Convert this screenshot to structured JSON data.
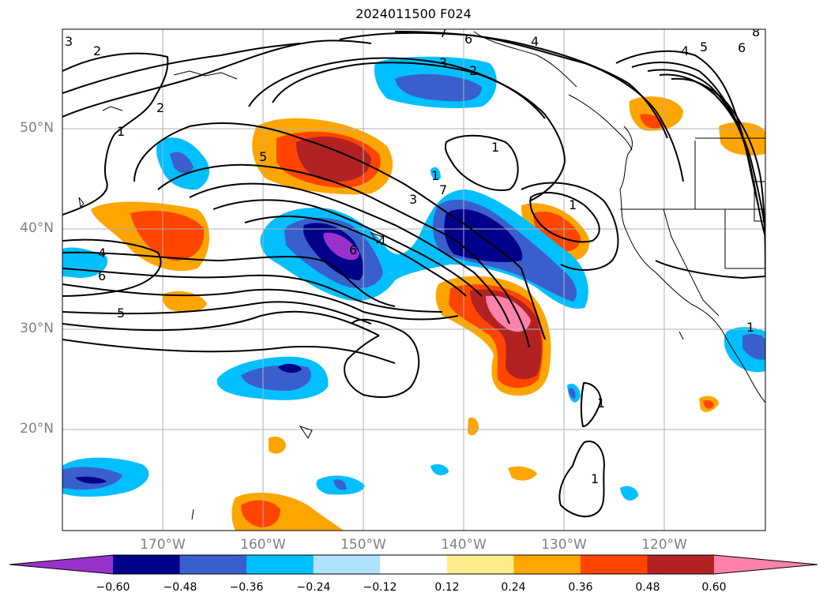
{
  "title": "2024011500 F024",
  "lat_labels": [
    "50°N",
    "40°N",
    "30°N",
    "20°N"
  ],
  "lon_labels": [
    "170°W",
    "160°W",
    "150°W",
    "140°W",
    "130°W",
    "120°W"
  ],
  "colorbar": {
    "ticks": [
      "−0.60",
      "−0.48",
      "−0.36",
      "−0.24",
      "−0.12",
      "0.12",
      "0.24",
      "0.36",
      "0.48",
      "0.60"
    ],
    "colors": [
      "#9932cc",
      "#00008b",
      "#3a5fcd",
      "#00bfff",
      "#b0e2ff",
      "#ffffff",
      "#ffec8b",
      "#ffa500",
      "#ff4500",
      "#b22222",
      "#ff82ab"
    ]
  },
  "contour_labels": [
    "3",
    "2",
    "2",
    "1",
    "7",
    "6",
    "4",
    "3",
    "2",
    "4",
    "5",
    "6",
    "8",
    "5",
    "1",
    "1",
    "3",
    "7",
    "1",
    "4",
    "6",
    "6",
    "1",
    "5",
    "1",
    "1",
    "1"
  ]
}
